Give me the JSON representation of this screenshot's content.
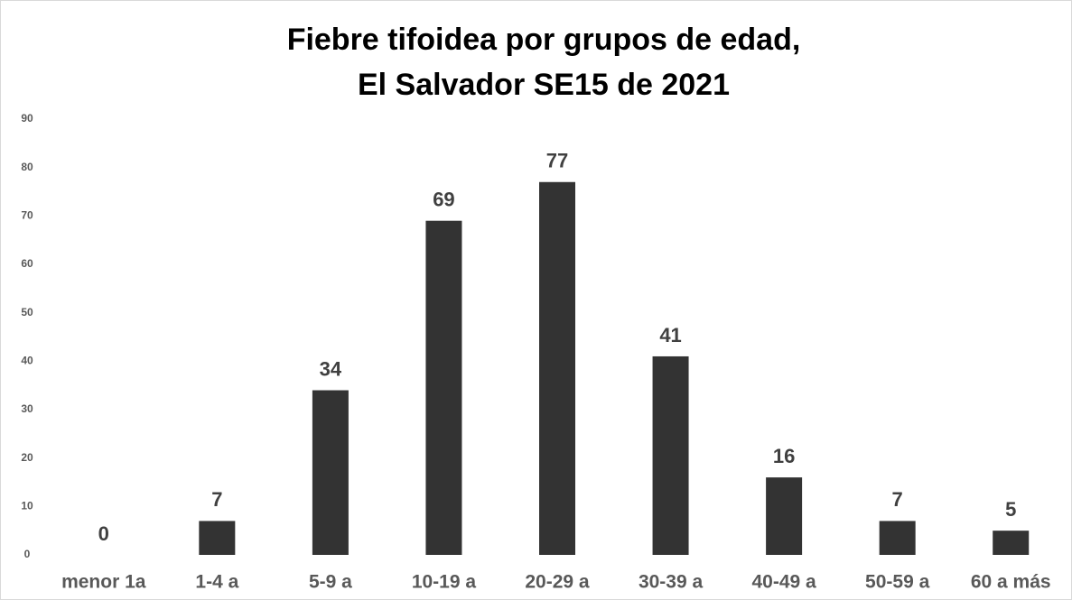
{
  "chart_data": {
    "type": "bar",
    "title": [
      "Fiebre tifoidea por grupos de edad,",
      "El Salvador SE15 de 2021"
    ],
    "categories": [
      "menor 1a",
      "1-4 a",
      "5-9 a",
      "10-19 a",
      "20-29 a",
      "30-39 a",
      "40-49 a",
      "50-59 a",
      "60 a más"
    ],
    "values": [
      0,
      7,
      34,
      69,
      77,
      41,
      16,
      7,
      5
    ],
    "color": "#333333",
    "ylim": [
      0,
      90
    ],
    "yticks": [
      0,
      10,
      20,
      30,
      40,
      50,
      60,
      70,
      80,
      90
    ],
    "grid": false
  }
}
